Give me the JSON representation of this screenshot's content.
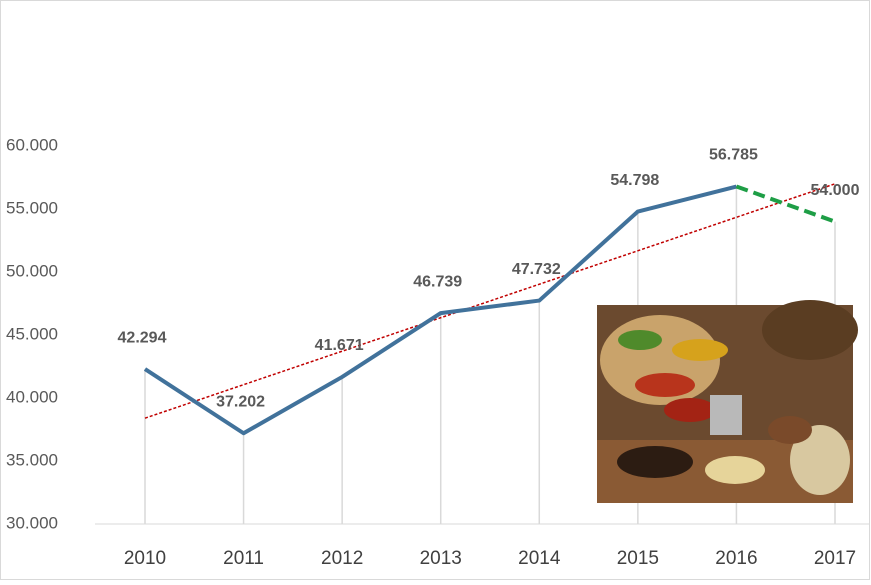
{
  "chart_data": {
    "type": "line",
    "categories": [
      "2010",
      "2011",
      "2012",
      "2013",
      "2014",
      "2015",
      "2016",
      "2017"
    ],
    "series": [
      {
        "color": "#41729b",
        "dashed": false,
        "values": [
          42294,
          37202,
          41671,
          46739,
          47732,
          54798,
          56785,
          null
        ],
        "value_labels": [
          "42.294",
          "37.202",
          "41.671",
          "46.739",
          "47.732",
          "54.798",
          "56.785",
          null
        ]
      },
      {
        "color": "#1e9e46",
        "dashed": true,
        "values": [
          null,
          null,
          null,
          null,
          null,
          null,
          56785,
          54000
        ],
        "value_labels": [
          null,
          null,
          null,
          null,
          null,
          null,
          null,
          "54.000"
        ]
      }
    ],
    "trendline": {
      "color": "#c00000",
      "values": [
        38400,
        57000
      ]
    },
    "ylim": [
      30000,
      60000
    ],
    "yticks": [
      {
        "value": 30000,
        "label": "30.000"
      },
      {
        "value": 35000,
        "label": "35.000"
      },
      {
        "value": 40000,
        "label": "40.000"
      },
      {
        "value": 45000,
        "label": "45.000"
      },
      {
        "value": 50000,
        "label": "50.000"
      },
      {
        "value": 55000,
        "label": "55.000"
      },
      {
        "value": 60000,
        "label": "60.000"
      }
    ],
    "drop_lines": true
  }
}
